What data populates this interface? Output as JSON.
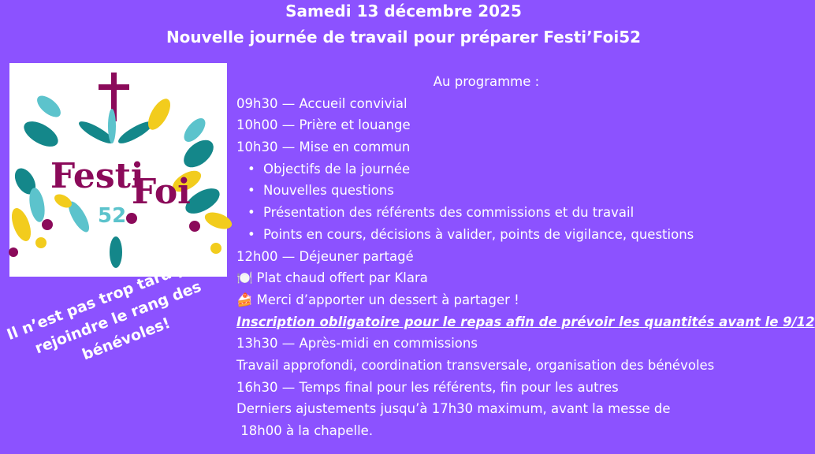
{
  "header": {
    "date": "Samedi 13 décembre 2025",
    "title": "Nouvelle journée de travail pour préparer Festi’Foi52"
  },
  "logo": {
    "text": "Festi'Foi",
    "number": "52",
    "colors": {
      "purple": "#8b0a5a",
      "teal": "#14878a",
      "light_teal": "#5cc3cc",
      "yellow": "#f2cc1d"
    }
  },
  "side_text": [
    "Il n’est pas trop tard pour",
    "rejoindre le rang des",
    "bénévoles!"
  ],
  "program": {
    "heading": "Au programme :",
    "lines": [
      {
        "type": "line",
        "text": "09h30 — Accueil convivial"
      },
      {
        "type": "line",
        "text": "10h00 — Prière et louange"
      },
      {
        "type": "line",
        "text": "10h30 — Mise en commun"
      },
      {
        "type": "bullet",
        "text": "Objectifs de la journée"
      },
      {
        "type": "bullet",
        "text": "Nouvelles questions"
      },
      {
        "type": "bullet",
        "text": "Présentation des référents des commissions et du travail"
      },
      {
        "type": "bullet",
        "text": "Points en cours, décisions à valider, points de vigilance, questions"
      },
      {
        "type": "line",
        "text": "12h00 — Déjeuner partagé"
      },
      {
        "type": "icon",
        "icon": "🍽️",
        "icon_name": "plate-icon",
        "text": "Plat chaud offert par Klara"
      },
      {
        "type": "icon",
        "icon": "🍰",
        "icon_name": "cake-icon",
        "text": "Merci d’apporter un dessert à partager !"
      },
      {
        "type": "emphasis",
        "text": "Inscription obligatoire pour le repas afin de prévoir les quantités avant le 9/12"
      },
      {
        "type": "line",
        "text": "13h30 — Après-midi en commissions"
      },
      {
        "type": "line",
        "text": "Travail approfondi, coordination transversale, organisation des bénévoles"
      },
      {
        "type": "line",
        "text": "16h30 — Temps final pour les référents, fin pour les autres"
      },
      {
        "type": "line",
        "text": "Derniers ajustements jusqu’à 17h30 maximum, avant la messe de"
      },
      {
        "type": "line",
        "text": " 18h00 à la chapelle."
      }
    ]
  },
  "colors": {
    "background": "#8c52ff",
    "text": "#ffffff"
  }
}
